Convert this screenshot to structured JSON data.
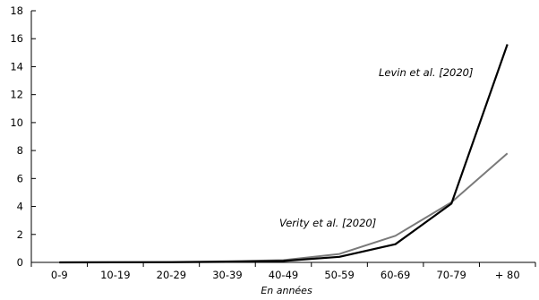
{
  "chart_data": {
    "type": "line",
    "xlabel": "En années",
    "ylabel": "",
    "ylim": [
      0,
      18
    ],
    "yticks": [
      0,
      2,
      4,
      6,
      8,
      10,
      12,
      14,
      16,
      18
    ],
    "categories": [
      "0-9",
      "10-19",
      "20-29",
      "30-39",
      "40-49",
      "50-59",
      "60-69",
      "70-79",
      "+ 80"
    ],
    "grid": false,
    "series": [
      {
        "name": "Levin et al. [2020]",
        "color": "#000000",
        "values": [
          0.001,
          0.004,
          0.01,
          0.04,
          0.1,
          0.4,
          1.3,
          4.2,
          15.6
        ]
      },
      {
        "name": "Verity et al. [2020]",
        "color": "#7a7a7a",
        "values": [
          0.002,
          0.007,
          0.03,
          0.08,
          0.16,
          0.6,
          1.9,
          4.3,
          7.8
        ]
      }
    ]
  }
}
